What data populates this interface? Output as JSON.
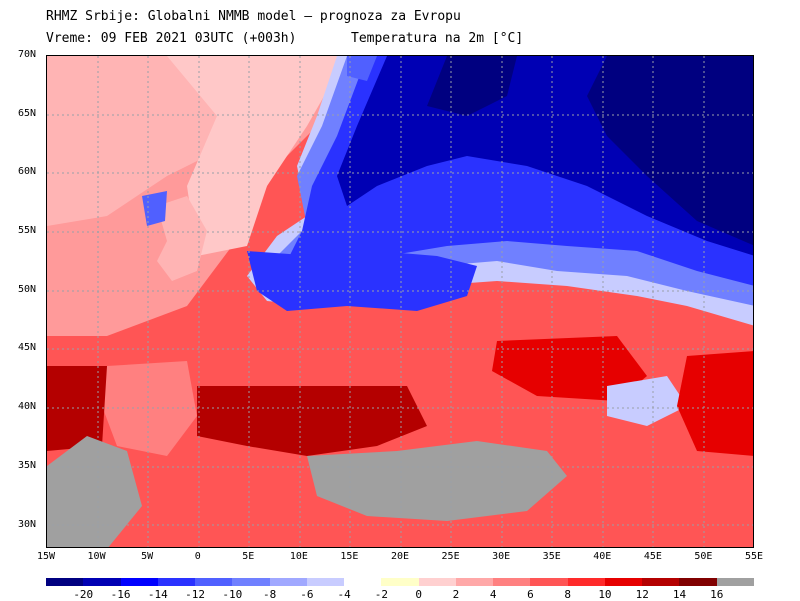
{
  "header": {
    "line1": "RHMZ Srbije: Globalni NMMB model — prognoza za Evropu",
    "line2": "Vreme: 09 FEB 2021 03UTC (+003h)",
    "variable": "Temperatura na 2m [°C]"
  },
  "map": {
    "lat_labels": [
      "70N",
      "65N",
      "60N",
      "55N",
      "50N",
      "45N",
      "40N",
      "35N",
      "30N"
    ],
    "lat_values": [
      70,
      65,
      60,
      55,
      50,
      45,
      40,
      35,
      30
    ],
    "lon_labels": [
      "15W",
      "10W",
      "5W",
      "0",
      "5E",
      "10E",
      "15E",
      "20E",
      "25E",
      "30E",
      "35E",
      "40E",
      "45E",
      "50E",
      "55E"
    ],
    "lon_values": [
      -15,
      -10,
      -5,
      0,
      5,
      10,
      15,
      20,
      25,
      30,
      35,
      40,
      45,
      50,
      55
    ],
    "lat_range": [
      28,
      70
    ],
    "lon_range": [
      -15,
      55
    ]
  },
  "colorbar": {
    "labels": [
      "-20",
      "-16",
      "-14",
      "-12",
      "-10",
      "-8",
      "-6",
      "-4",
      "-2",
      "0",
      "2",
      "4",
      "6",
      "8",
      "10",
      "12",
      "14",
      "16"
    ],
    "colors": [
      "#000080",
      "#0000b4",
      "#0000ff",
      "#2a32ff",
      "#5060ff",
      "#7080ff",
      "#a0a8ff",
      "#c8ccff",
      "#ffffff",
      "#ffffc8",
      "#ffd0d0",
      "#ffa8a8",
      "#ff8080",
      "#ff5555",
      "#ff2a2a",
      "#e60000",
      "#b40000",
      "#800000",
      "#a0a0a0"
    ]
  }
}
